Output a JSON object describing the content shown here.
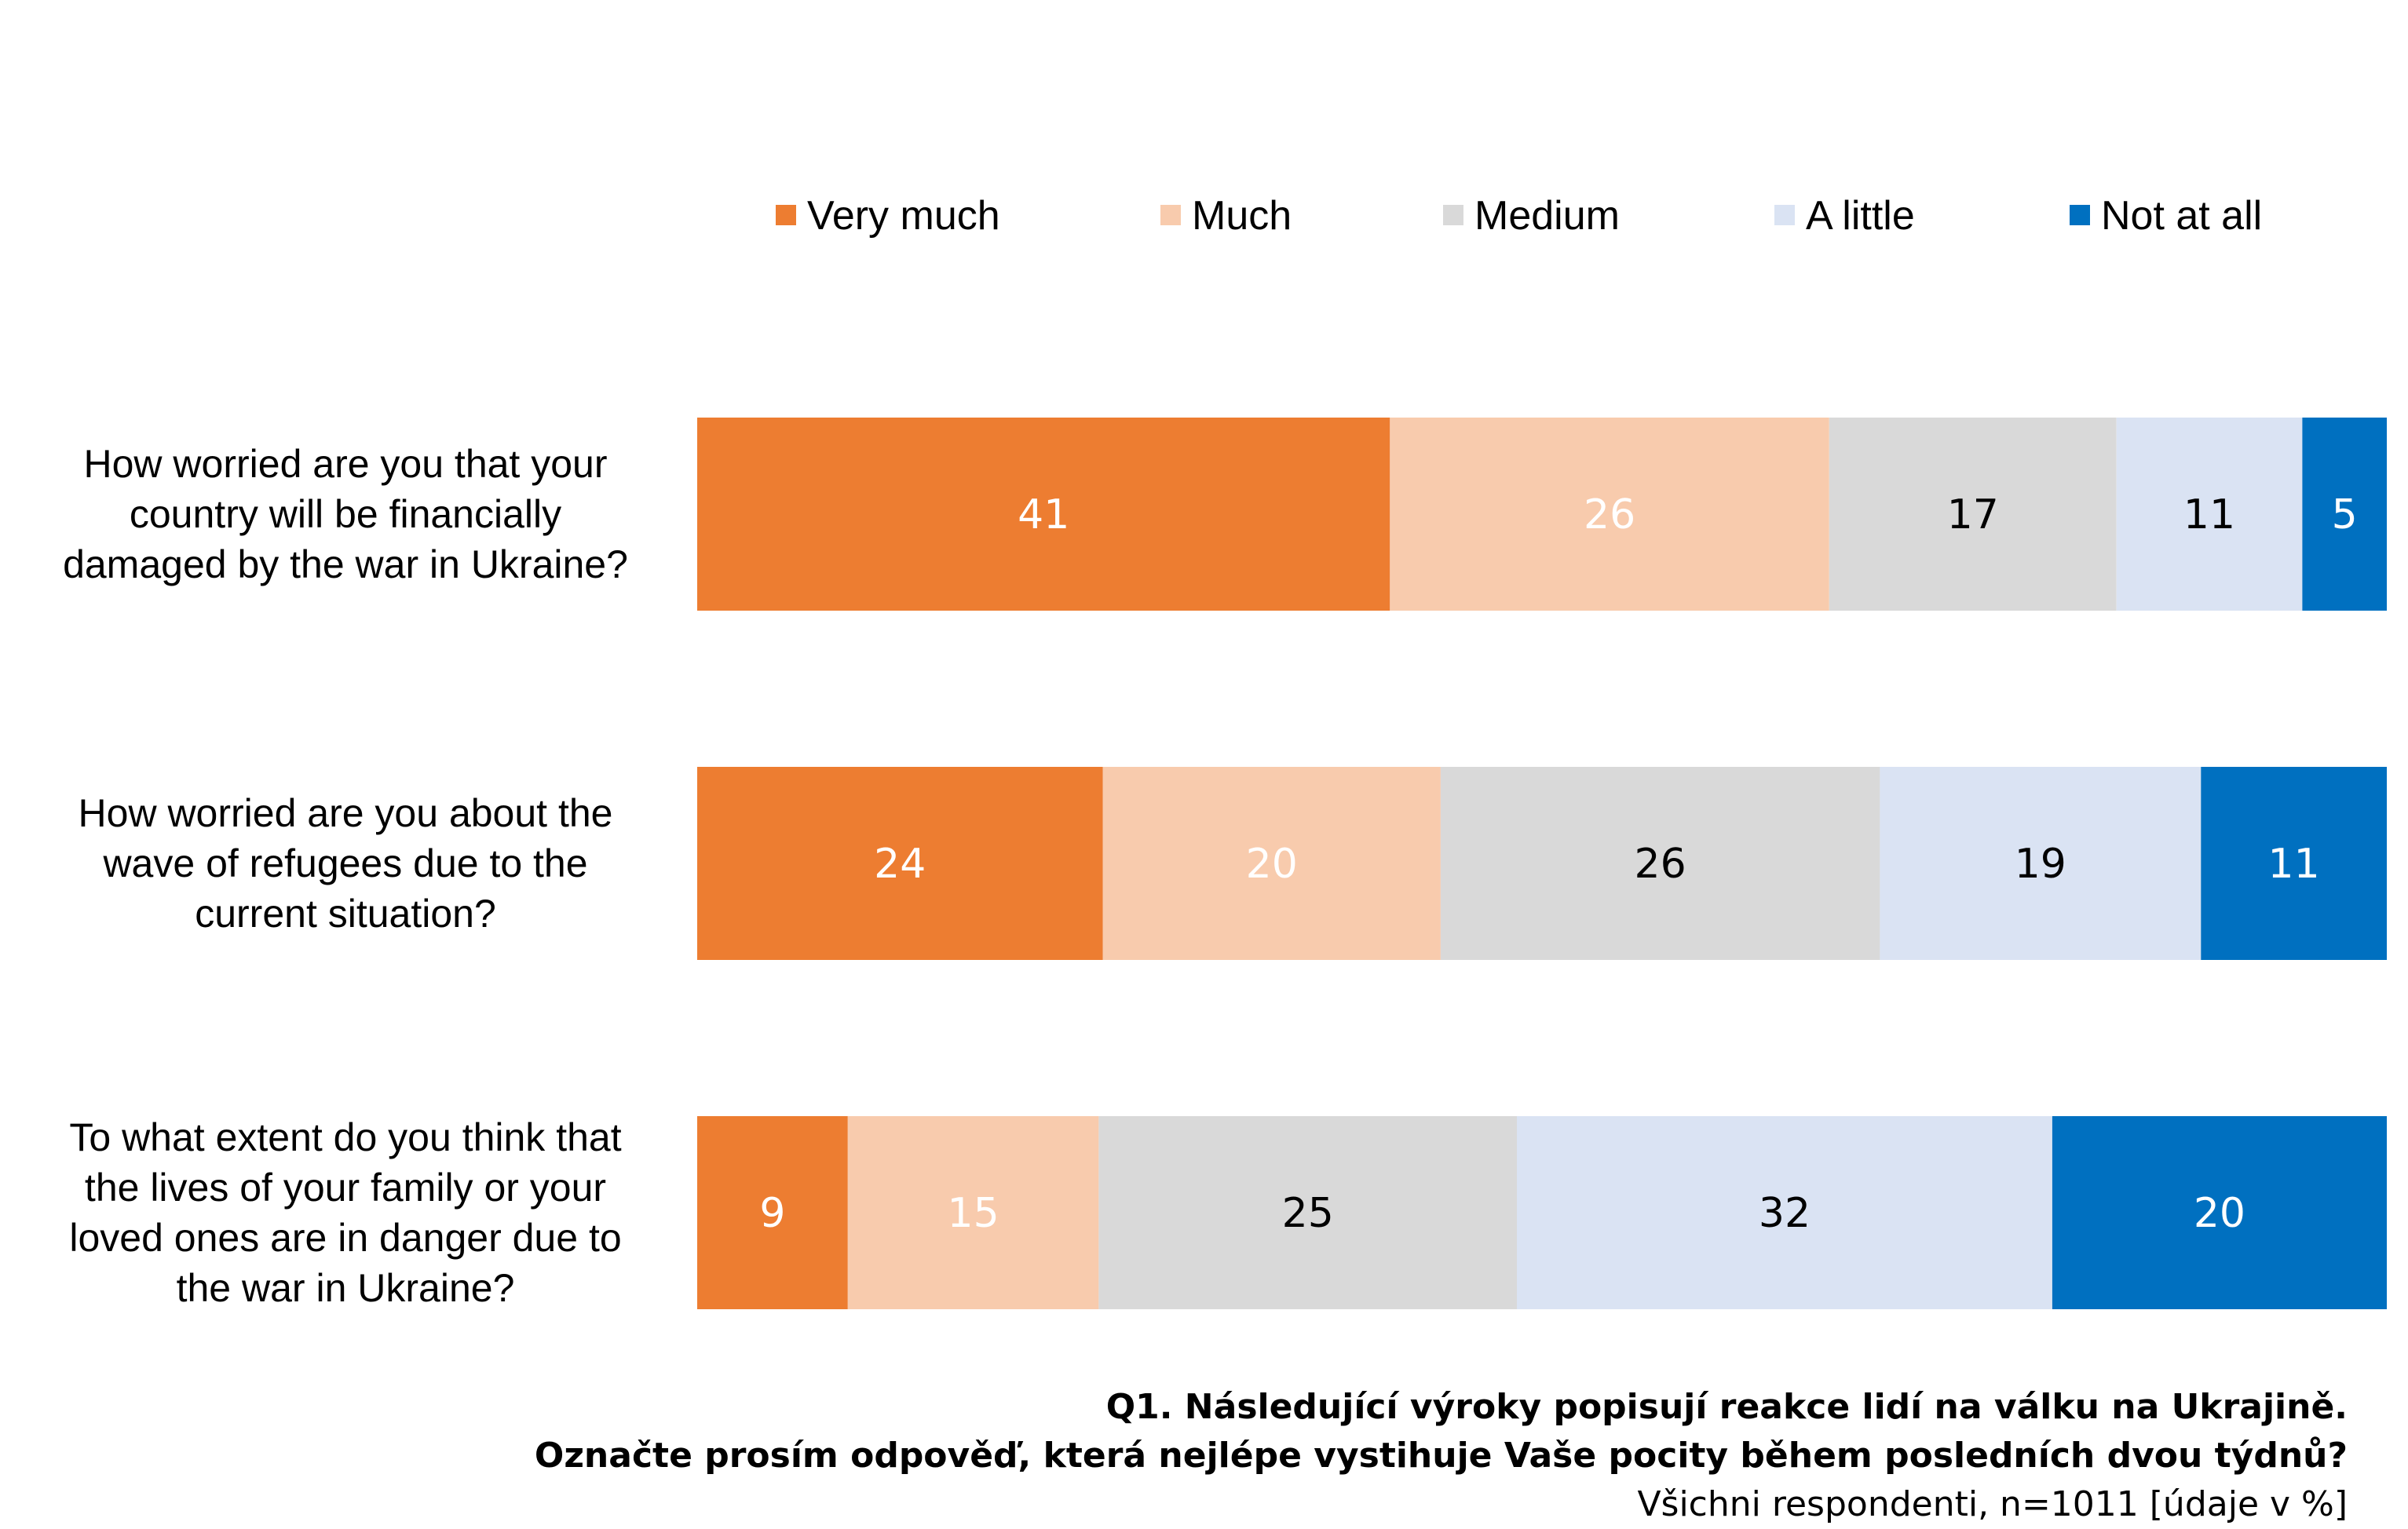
{
  "chart_data": {
    "type": "bar",
    "orientation": "horizontal",
    "stacked": true,
    "legend_position": "top",
    "xlim": [
      0,
      100
    ],
    "categories": [
      "How worried are you that your country will be financially damaged by the war in Ukraine?",
      "How worried are you about the wave of refugees due to the current situation?",
      "To what extent do you think that the lives of your family or your loved ones are in danger due to the war in Ukraine?"
    ],
    "category_lines": [
      [
        "How worried are you that your",
        "country will be financially",
        "damaged by the war in Ukraine?"
      ],
      [
        "How worried are you about the",
        "wave of refugees due to the",
        "current situation?"
      ],
      [
        "To what extent do you think that",
        "the lives of your family or your",
        "loved ones are in danger due to",
        "the war in Ukraine?"
      ]
    ],
    "series": [
      {
        "name": "Very much",
        "color": "#ED7D31",
        "label_color": "#FFFFFF",
        "values": [
          41,
          24,
          9
        ]
      },
      {
        "name": "Much",
        "color": "#F8CBAD",
        "label_color": "#FFFFFF",
        "values": [
          26,
          20,
          15
        ]
      },
      {
        "name": "Medium",
        "color": "#D9D9D9",
        "label_color": "#000000",
        "values": [
          17,
          26,
          25
        ]
      },
      {
        "name": "A little",
        "color": "#DAE3F3",
        "label_color": "#000000",
        "values": [
          11,
          19,
          32
        ]
      },
      {
        "name": "Not at all",
        "color": "#0070C0",
        "label_color": "#FFFFFF",
        "values": [
          5,
          11,
          20
        ]
      }
    ]
  },
  "footnote": {
    "line1": "Q1. Následující výroky popisují reakce lidí na válku na Ukrajině.",
    "line2": "Označte prosím odpověď, která nejlépe vystihuje Vaše pocity během posledních dvou týdnů?",
    "line3": "Všichni respondenti, n=1011 [údaje v %]"
  }
}
